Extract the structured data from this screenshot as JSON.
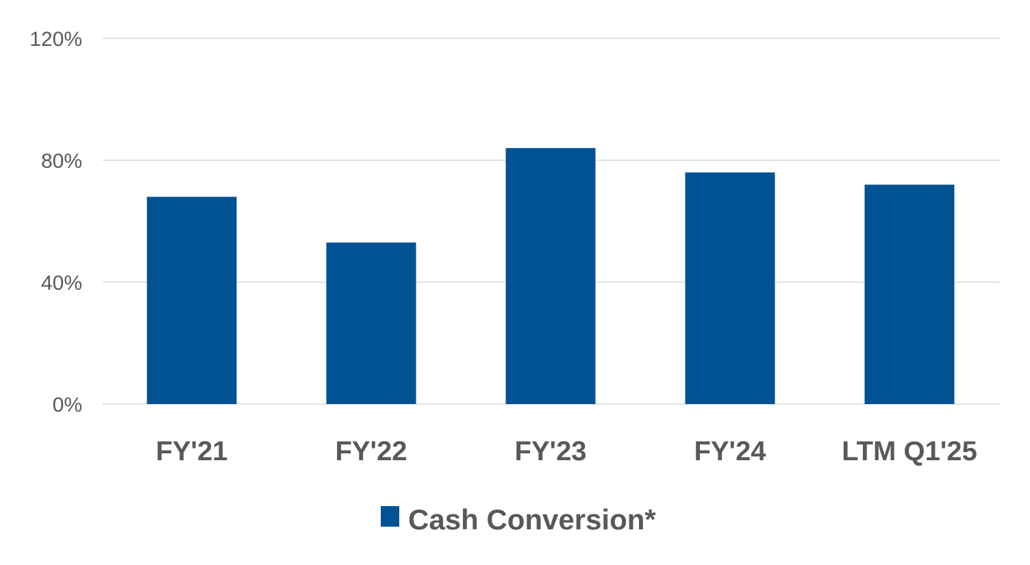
{
  "chart_data": {
    "type": "bar",
    "categories": [
      "FY'21",
      "FY'22",
      "FY'23",
      "FY'24",
      "LTM Q1'25"
    ],
    "series": [
      {
        "name": "Cash Conversion*",
        "values": [
          68,
          53,
          84,
          76,
          72
        ],
        "color": "#005293"
      }
    ],
    "ylim": [
      0,
      120
    ],
    "yticks": [
      0,
      40,
      80,
      120
    ],
    "ytick_labels": [
      "0%",
      "40%",
      "80%",
      "120%"
    ],
    "grid": true,
    "legend": "bottom-center",
    "grid_color": "#d9d9d9",
    "axis_text_color": "#595959"
  }
}
